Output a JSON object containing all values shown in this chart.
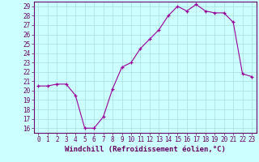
{
  "x": [
    0,
    1,
    2,
    3,
    4,
    5,
    6,
    7,
    8,
    9,
    10,
    11,
    12,
    13,
    14,
    15,
    16,
    17,
    18,
    19,
    20,
    21,
    22,
    23
  ],
  "y": [
    20.5,
    20.5,
    20.7,
    20.7,
    19.5,
    16.0,
    16.0,
    17.2,
    20.2,
    22.5,
    23.0,
    24.5,
    25.5,
    26.5,
    28.0,
    29.0,
    28.5,
    29.2,
    28.5,
    28.3,
    28.3,
    27.3,
    21.8,
    21.5
  ],
  "line_color": "#990099",
  "marker_color": "#990099",
  "bg_color": "#ccffff",
  "grid_color": "#aadddd",
  "xlabel": "Windchill (Refroidissement éolien,°C)",
  "xlabel_color": "#660066",
  "tick_color": "#660066",
  "axis_color": "#660066",
  "ylim_min": 15.5,
  "ylim_max": 29.5,
  "yticks": [
    16,
    17,
    18,
    19,
    20,
    21,
    22,
    23,
    24,
    25,
    26,
    27,
    28,
    29
  ],
  "xticks": [
    0,
    1,
    2,
    3,
    4,
    5,
    6,
    7,
    8,
    9,
    10,
    11,
    12,
    13,
    14,
    15,
    16,
    17,
    18,
    19,
    20,
    21,
    22,
    23
  ],
  "tick_fontsize": 5.5,
  "xlabel_fontsize": 6.5
}
